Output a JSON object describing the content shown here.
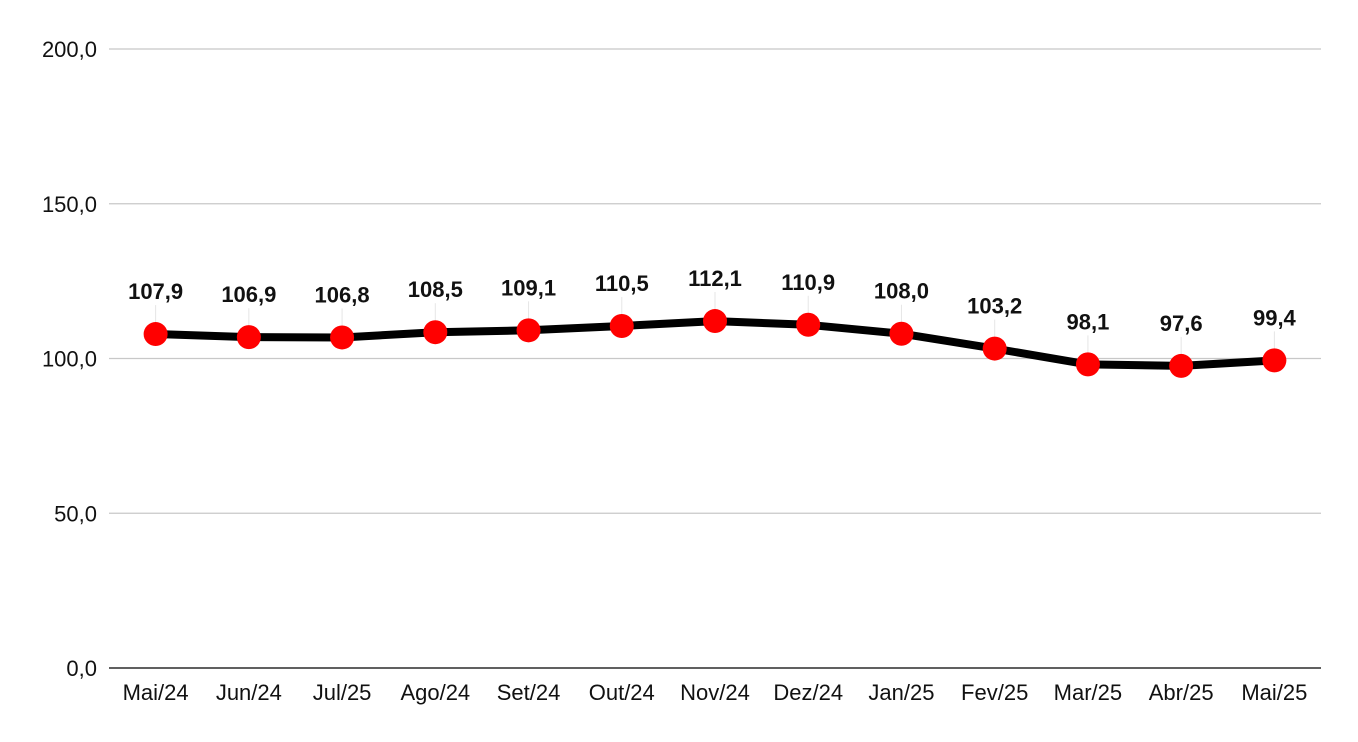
{
  "chart_data": {
    "type": "line",
    "title": "",
    "xlabel": "",
    "ylabel": "",
    "categories": [
      "Mai/24",
      "Jun/24",
      "Jul/25",
      "Ago/24",
      "Set/24",
      "Out/24",
      "Nov/24",
      "Dez/24",
      "Jan/25",
      "Fev/25",
      "Mar/25",
      "Abr/25",
      "Mai/25"
    ],
    "series": [
      {
        "values": [
          107.9,
          106.9,
          106.8,
          108.5,
          109.1,
          110.5,
          112.1,
          110.9,
          108.0,
          103.2,
          98.1,
          97.6,
          99.4
        ],
        "value_labels": [
          "107,9",
          "106,9",
          "106,8",
          "108,5",
          "109,1",
          "110,5",
          "112,1",
          "110,9",
          "108,0",
          "103,2",
          "98,1",
          "97,6",
          "99,4"
        ]
      }
    ],
    "ylim": [
      0,
      200
    ],
    "yticks": [
      0,
      50,
      100,
      150,
      200
    ],
    "ytick_labels": [
      "0,0",
      "50,0",
      "100,0",
      "150,0",
      "200,0"
    ],
    "grid": true,
    "legend": "none",
    "colors": {
      "line": "#000000",
      "marker": "#ff0000",
      "grid": "#c8c8c8"
    }
  }
}
